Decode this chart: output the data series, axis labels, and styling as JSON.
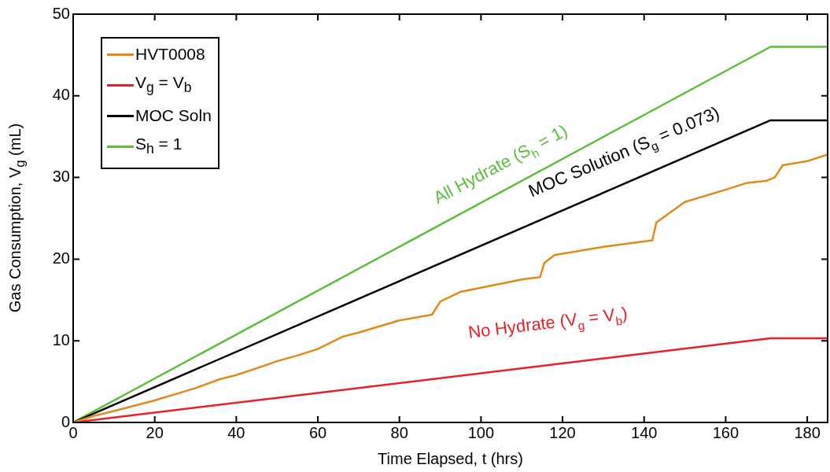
{
  "chart_data": {
    "type": "line",
    "xlabel": "Time Elapsed, t (hrs)",
    "ylabel": "Gas Consumption, V$_{g}$ (mL)",
    "xlim": [
      0,
      185
    ],
    "ylim": [
      0,
      50
    ],
    "xticks": [
      0,
      20,
      40,
      60,
      80,
      100,
      120,
      140,
      160,
      180
    ],
    "yticks": [
      0,
      10,
      20,
      30,
      40,
      50
    ],
    "grid": false,
    "legend": "top left",
    "marker": "none",
    "line_style": "solid",
    "series": [
      {
        "name": "HVT0008",
        "color": "#e08a1e",
        "x": [
          0,
          5,
          10,
          20,
          30,
          36,
          40,
          46,
          50,
          55,
          60,
          66,
          70,
          80,
          88,
          90,
          95,
          100,
          110,
          114.5,
          115.5,
          118,
          130,
          142,
          143,
          150,
          160,
          165,
          170,
          172,
          174,
          180,
          185
        ],
        "values": [
          0,
          0.8,
          1.4,
          2.7,
          4.2,
          5.3,
          5.8,
          6.8,
          7.5,
          8.2,
          9,
          10.5,
          11,
          12.5,
          13.2,
          14.8,
          16,
          16.5,
          17.5,
          17.8,
          19.5,
          20.5,
          21.5,
          22.3,
          24.5,
          27,
          28.5,
          29.3,
          29.6,
          30,
          31.5,
          32,
          32.8
        ]
      },
      {
        "name": "V$_{g}$ = V$_{b}$",
        "color": "#e8202a",
        "x": [
          0,
          171,
          185
        ],
        "values": [
          0,
          10.3,
          10.3
        ]
      },
      {
        "name": "MOC Soln",
        "color": "#000000",
        "x": [
          0,
          171,
          185
        ],
        "values": [
          0,
          37,
          37
        ]
      },
      {
        "name": "S$_{h}$ = 1",
        "color": "#5cbf3c",
        "x": [
          0,
          171,
          185
        ],
        "values": [
          0,
          46,
          46
        ]
      }
    ],
    "annotations": [
      "All Hydrate (S$_{h}$ = 1)",
      "MOC Solution (S$_{g}$ = 0.073)",
      "No Hydrate (V$_{g}$ = V$_{b}$)"
    ]
  }
}
